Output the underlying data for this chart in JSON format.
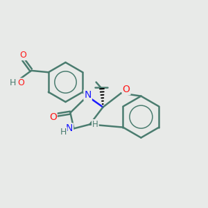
{
  "bg_color": "#e8eae8",
  "bond_color": "#4a7c6f",
  "bond_width": 1.8,
  "N_color": "#1a1aff",
  "O_color": "#ff1a1a",
  "H_color": "#4a7c6f",
  "figsize": [
    3.0,
    3.0
  ],
  "dpi": 100,
  "xlim": [
    0,
    10
  ],
  "ylim": [
    0,
    10
  ]
}
